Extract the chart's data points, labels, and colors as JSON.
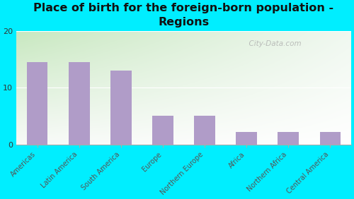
{
  "title": "Place of birth for the foreign-born population -\nRegions",
  "categories": [
    "Americas",
    "Latin America",
    "South America",
    "Europe",
    "Northern Europe",
    "Africa",
    "Northern Africa",
    "Central America"
  ],
  "values": [
    14.5,
    14.5,
    13.0,
    5.0,
    5.0,
    2.2,
    2.2,
    2.2
  ],
  "bar_color": "#b09cc8",
  "bg_outer": "#00eeff",
  "bg_inner_left": "#c8e8c0",
  "bg_inner_right": "#f0f8f0",
  "bg_inner_top": "#d8efd0",
  "bg_inner_bottom": "#f8faf8",
  "ylim": [
    0,
    20
  ],
  "yticks": [
    0,
    10,
    20
  ],
  "watermark": "  City-Data.com",
  "title_fontsize": 11.5,
  "tick_fontsize": 7.0,
  "ytick_fontsize": 8.0
}
